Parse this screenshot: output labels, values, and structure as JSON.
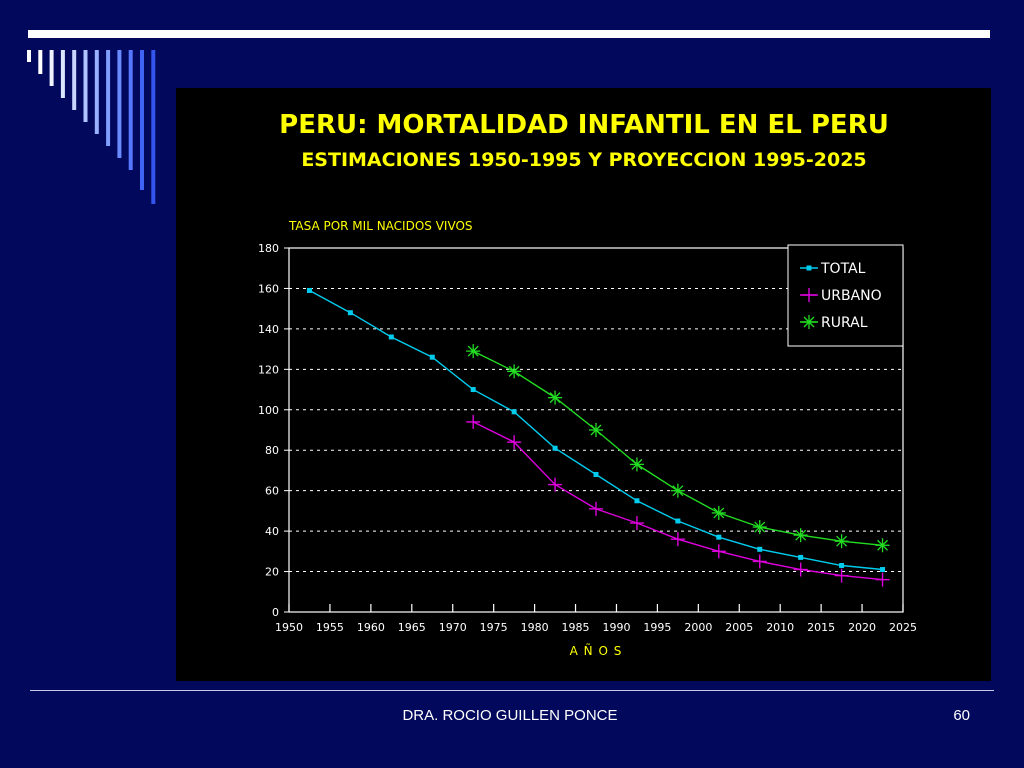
{
  "footer": {
    "author": "DRA. ROCIO GUILLEN PONCE",
    "page_number": "60"
  },
  "theme": {
    "background": "#02085c",
    "panel": "#000000",
    "title_color": "#ffff00",
    "total_color": "#00ccee",
    "urbano_color": "#dd00dd",
    "rural_color": "#22dd22"
  },
  "chart_data": {
    "type": "line",
    "title": "PERU: MORTALIDAD INFANTIL EN EL PERU",
    "subtitle": "ESTIMACIONES 1950-1995 Y PROYECCION 1995-2025",
    "ylabel": "TASA POR MIL NACIDOS VIVOS",
    "xlabel": "A Ñ O S",
    "xlim": [
      1950,
      2025
    ],
    "ylim": [
      0,
      180
    ],
    "xticks": [
      "1950",
      "1955",
      "1960",
      "1965",
      "1970",
      "1975",
      "1980",
      "1985",
      "1990",
      "1995",
      "2000",
      "2005",
      "2010",
      "2015",
      "2020",
      "2025"
    ],
    "yticks": [
      "0",
      "20",
      "40",
      "60",
      "80",
      "100",
      "120",
      "140",
      "160",
      "180"
    ],
    "grid": "horizontal-dashed",
    "legend_position": "top-right",
    "series": [
      {
        "name": "TOTAL",
        "marker": "square",
        "x": [
          1952.5,
          1957.5,
          1962.5,
          1967.5,
          1972.5,
          1977.5,
          1982.5,
          1987.5,
          1992.5,
          1997.5,
          2002.5,
          2007.5,
          2012.5,
          2017.5,
          2022.5
        ],
        "y": [
          159,
          148,
          136,
          126,
          110,
          99,
          81,
          68,
          55,
          45,
          37,
          31,
          27,
          23,
          21
        ]
      },
      {
        "name": "URBANO",
        "marker": "plus",
        "x": [
          1972.5,
          1977.5,
          1982.5,
          1987.5,
          1992.5,
          1997.5,
          2002.5,
          2007.5,
          2012.5,
          2017.5,
          2022.5
        ],
        "y": [
          94,
          84,
          63,
          51,
          44,
          36,
          30,
          25,
          21,
          18,
          16
        ]
      },
      {
        "name": "RURAL",
        "marker": "asterisk",
        "x": [
          1972.5,
          1977.5,
          1982.5,
          1987.5,
          1992.5,
          1997.5,
          2002.5,
          2007.5,
          2012.5,
          2017.5,
          2022.5
        ],
        "y": [
          129,
          119,
          106,
          90,
          73,
          60,
          49,
          42,
          38,
          35,
          33
        ]
      }
    ]
  }
}
